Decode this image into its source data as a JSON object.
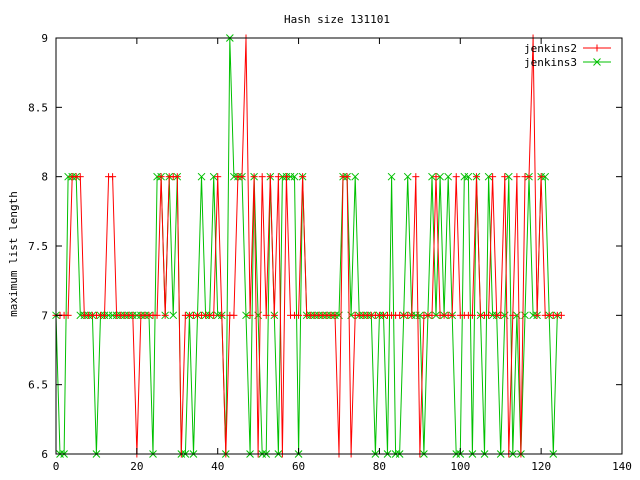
{
  "chart_data": {
    "type": "line",
    "title": "Hash size 131101",
    "xlabel": "",
    "ylabel": "maximum list length",
    "xlim": [
      0,
      140
    ],
    "ylim": [
      6,
      9
    ],
    "xticks": [
      0,
      20,
      40,
      60,
      80,
      100,
      120,
      140
    ],
    "yticks": [
      6,
      6.5,
      7,
      7.5,
      8,
      8.5,
      9
    ],
    "ytick_labels": [
      "6",
      "6.5",
      "7",
      "7.5",
      "8",
      "8.5",
      "9"
    ],
    "grid": false,
    "legend_position": "top-right",
    "series": [
      {
        "name": "jenkins2",
        "color": "#ff0000",
        "marker": "plus",
        "x": [
          0,
          1,
          2,
          3,
          4,
          5,
          6,
          7,
          8,
          9,
          10,
          11,
          12,
          13,
          14,
          15,
          16,
          17,
          18,
          19,
          20,
          21,
          22,
          23,
          24,
          25,
          26,
          27,
          28,
          29,
          30,
          31,
          32,
          33,
          34,
          35,
          36,
          37,
          38,
          39,
          40,
          41,
          42,
          43,
          44,
          45,
          46,
          47,
          48,
          49,
          50,
          51,
          52,
          53,
          54,
          55,
          56,
          57,
          58,
          59,
          60,
          61,
          62,
          63,
          64,
          65,
          66,
          67,
          68,
          69,
          70,
          71,
          72,
          73,
          74,
          75,
          76,
          77,
          78,
          79,
          80,
          81,
          82,
          83,
          84,
          85,
          86,
          87,
          88,
          89,
          90,
          91,
          92,
          93,
          94,
          95,
          96,
          97,
          98,
          99,
          100,
          101,
          102,
          103,
          104,
          105,
          106,
          107,
          108,
          109,
          110,
          111,
          112,
          113,
          114,
          115,
          116,
          117,
          118,
          119,
          120,
          121,
          122,
          123,
          124,
          125
        ],
        "y": [
          7,
          7,
          7,
          7,
          8,
          8,
          8,
          7,
          7,
          7,
          7,
          7,
          7,
          8,
          8,
          7,
          7,
          7,
          7,
          7,
          6,
          7,
          7,
          7,
          7,
          7,
          8,
          7,
          8,
          8,
          8,
          6,
          7,
          7,
          7,
          7,
          7,
          7,
          7,
          7,
          8,
          7,
          6,
          7,
          7,
          8,
          8,
          9,
          7,
          8,
          6,
          8,
          7,
          8,
          7,
          8,
          6,
          8,
          7,
          7,
          7,
          8,
          7,
          7,
          7,
          7,
          7,
          7,
          7,
          7,
          6,
          8,
          8,
          6,
          7,
          7,
          7,
          7,
          7,
          7,
          7,
          7,
          7,
          7,
          7,
          7,
          7,
          7,
          7,
          8,
          6,
          7,
          7,
          7,
          8,
          7,
          7,
          7,
          7,
          8,
          7,
          7,
          7,
          7,
          8,
          7,
          7,
          7,
          8,
          7,
          7,
          8,
          6,
          7,
          8,
          6,
          8,
          8,
          9,
          7,
          8,
          7,
          7,
          7,
          7,
          7
        ]
      },
      {
        "name": "jenkins3",
        "color": "#00c000",
        "marker": "x",
        "x": [
          0,
          1,
          2,
          3,
          4,
          5,
          6,
          7,
          8,
          9,
          10,
          11,
          12,
          13,
          14,
          15,
          16,
          17,
          18,
          19,
          20,
          21,
          22,
          23,
          24,
          25,
          26,
          27,
          28,
          29,
          30,
          31,
          32,
          33,
          34,
          35,
          36,
          37,
          38,
          39,
          40,
          41,
          42,
          43,
          44,
          45,
          46,
          47,
          48,
          49,
          50,
          51,
          52,
          53,
          54,
          55,
          56,
          57,
          58,
          59,
          60,
          61,
          62,
          63,
          64,
          65,
          66,
          67,
          68,
          69,
          70,
          71,
          72,
          73,
          74,
          75,
          76,
          77,
          78,
          79,
          80,
          81,
          82,
          83,
          84,
          85,
          86,
          87,
          88,
          89,
          90,
          91,
          92,
          93,
          94,
          95,
          96,
          97,
          98,
          99,
          100,
          101,
          102,
          103,
          104,
          105,
          106,
          107,
          108,
          109,
          110,
          111,
          112,
          113,
          114,
          115,
          116,
          117,
          118,
          119,
          120,
          121,
          122,
          123,
          124
        ],
        "y": [
          7,
          6,
          6,
          8,
          8,
          8,
          7,
          7,
          7,
          7,
          6,
          7,
          7,
          7,
          7,
          7,
          7,
          7,
          7,
          7,
          7,
          7,
          7,
          7,
          6,
          8,
          8,
          7,
          8,
          7,
          8,
          6,
          6,
          7,
          6,
          7,
          8,
          7,
          7,
          8,
          7,
          7,
          6,
          9,
          8,
          8,
          8,
          7,
          6,
          8,
          7,
          6,
          6,
          8,
          7,
          6,
          8,
          8,
          8,
          8,
          6,
          8,
          7,
          7,
          7,
          7,
          7,
          7,
          7,
          7,
          7,
          8,
          8,
          7,
          8,
          7,
          7,
          7,
          7,
          6,
          7,
          7,
          6,
          8,
          6,
          6,
          7,
          8,
          7,
          7,
          7,
          6,
          7,
          8,
          7,
          8,
          7,
          8,
          7,
          6,
          6,
          8,
          8,
          6,
          8,
          7,
          6,
          8,
          7,
          7,
          6,
          7,
          8,
          6,
          7,
          6,
          7,
          8,
          7,
          7,
          8,
          8,
          7,
          6,
          7
        ]
      }
    ]
  }
}
